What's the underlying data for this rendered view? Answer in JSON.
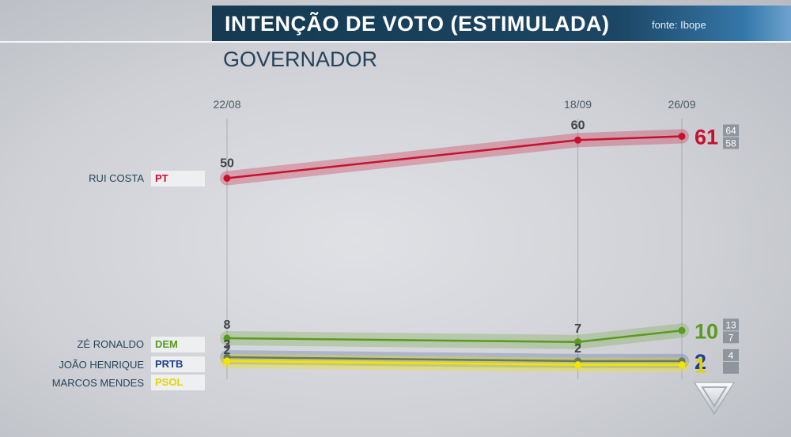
{
  "header": {
    "title": "INTENÇÃO DE VOTO (ESTIMULADA)",
    "source": "fonte: Ibope",
    "subtitle": "GOVERNADOR"
  },
  "colors": {
    "PT": "#c8102e",
    "DEM": "#5a9a1e",
    "PRTB": "#1f3f8f",
    "PSOL": "#f2e500"
  },
  "chart_data": {
    "type": "line",
    "x": [
      "22/08",
      "18/09",
      "26/09"
    ],
    "ylim": [
      0,
      64
    ],
    "series": [
      {
        "name": "RUI COSTA",
        "party": "PT",
        "color": "#c8102e",
        "values": [
          50,
          60,
          61
        ],
        "labels": [
          "50",
          "60",
          "61"
        ],
        "range": [
          "64",
          "58"
        ]
      },
      {
        "name": "ZÉ RONALDO",
        "party": "DEM",
        "color": "#5a9a1e",
        "values": [
          8,
          7,
          10
        ],
        "labels": [
          "8",
          "7",
          "10"
        ],
        "range": [
          "13",
          "7"
        ]
      },
      {
        "name": "JOÃO HENRIQUE",
        "party": "PRTB",
        "color": "#1f3f8f",
        "values": [
          3,
          2,
          2
        ],
        "labels": [
          "3",
          "2",
          "2"
        ],
        "range": [
          "4",
          ""
        ]
      },
      {
        "name": "MARCOS MENDES",
        "party": "PSOL",
        "color": "#f2e500",
        "values": [
          2,
          1,
          1
        ],
        "labels": [
          "2",
          "",
          "1"
        ],
        "range": [
          "",
          ""
        ]
      }
    ]
  }
}
